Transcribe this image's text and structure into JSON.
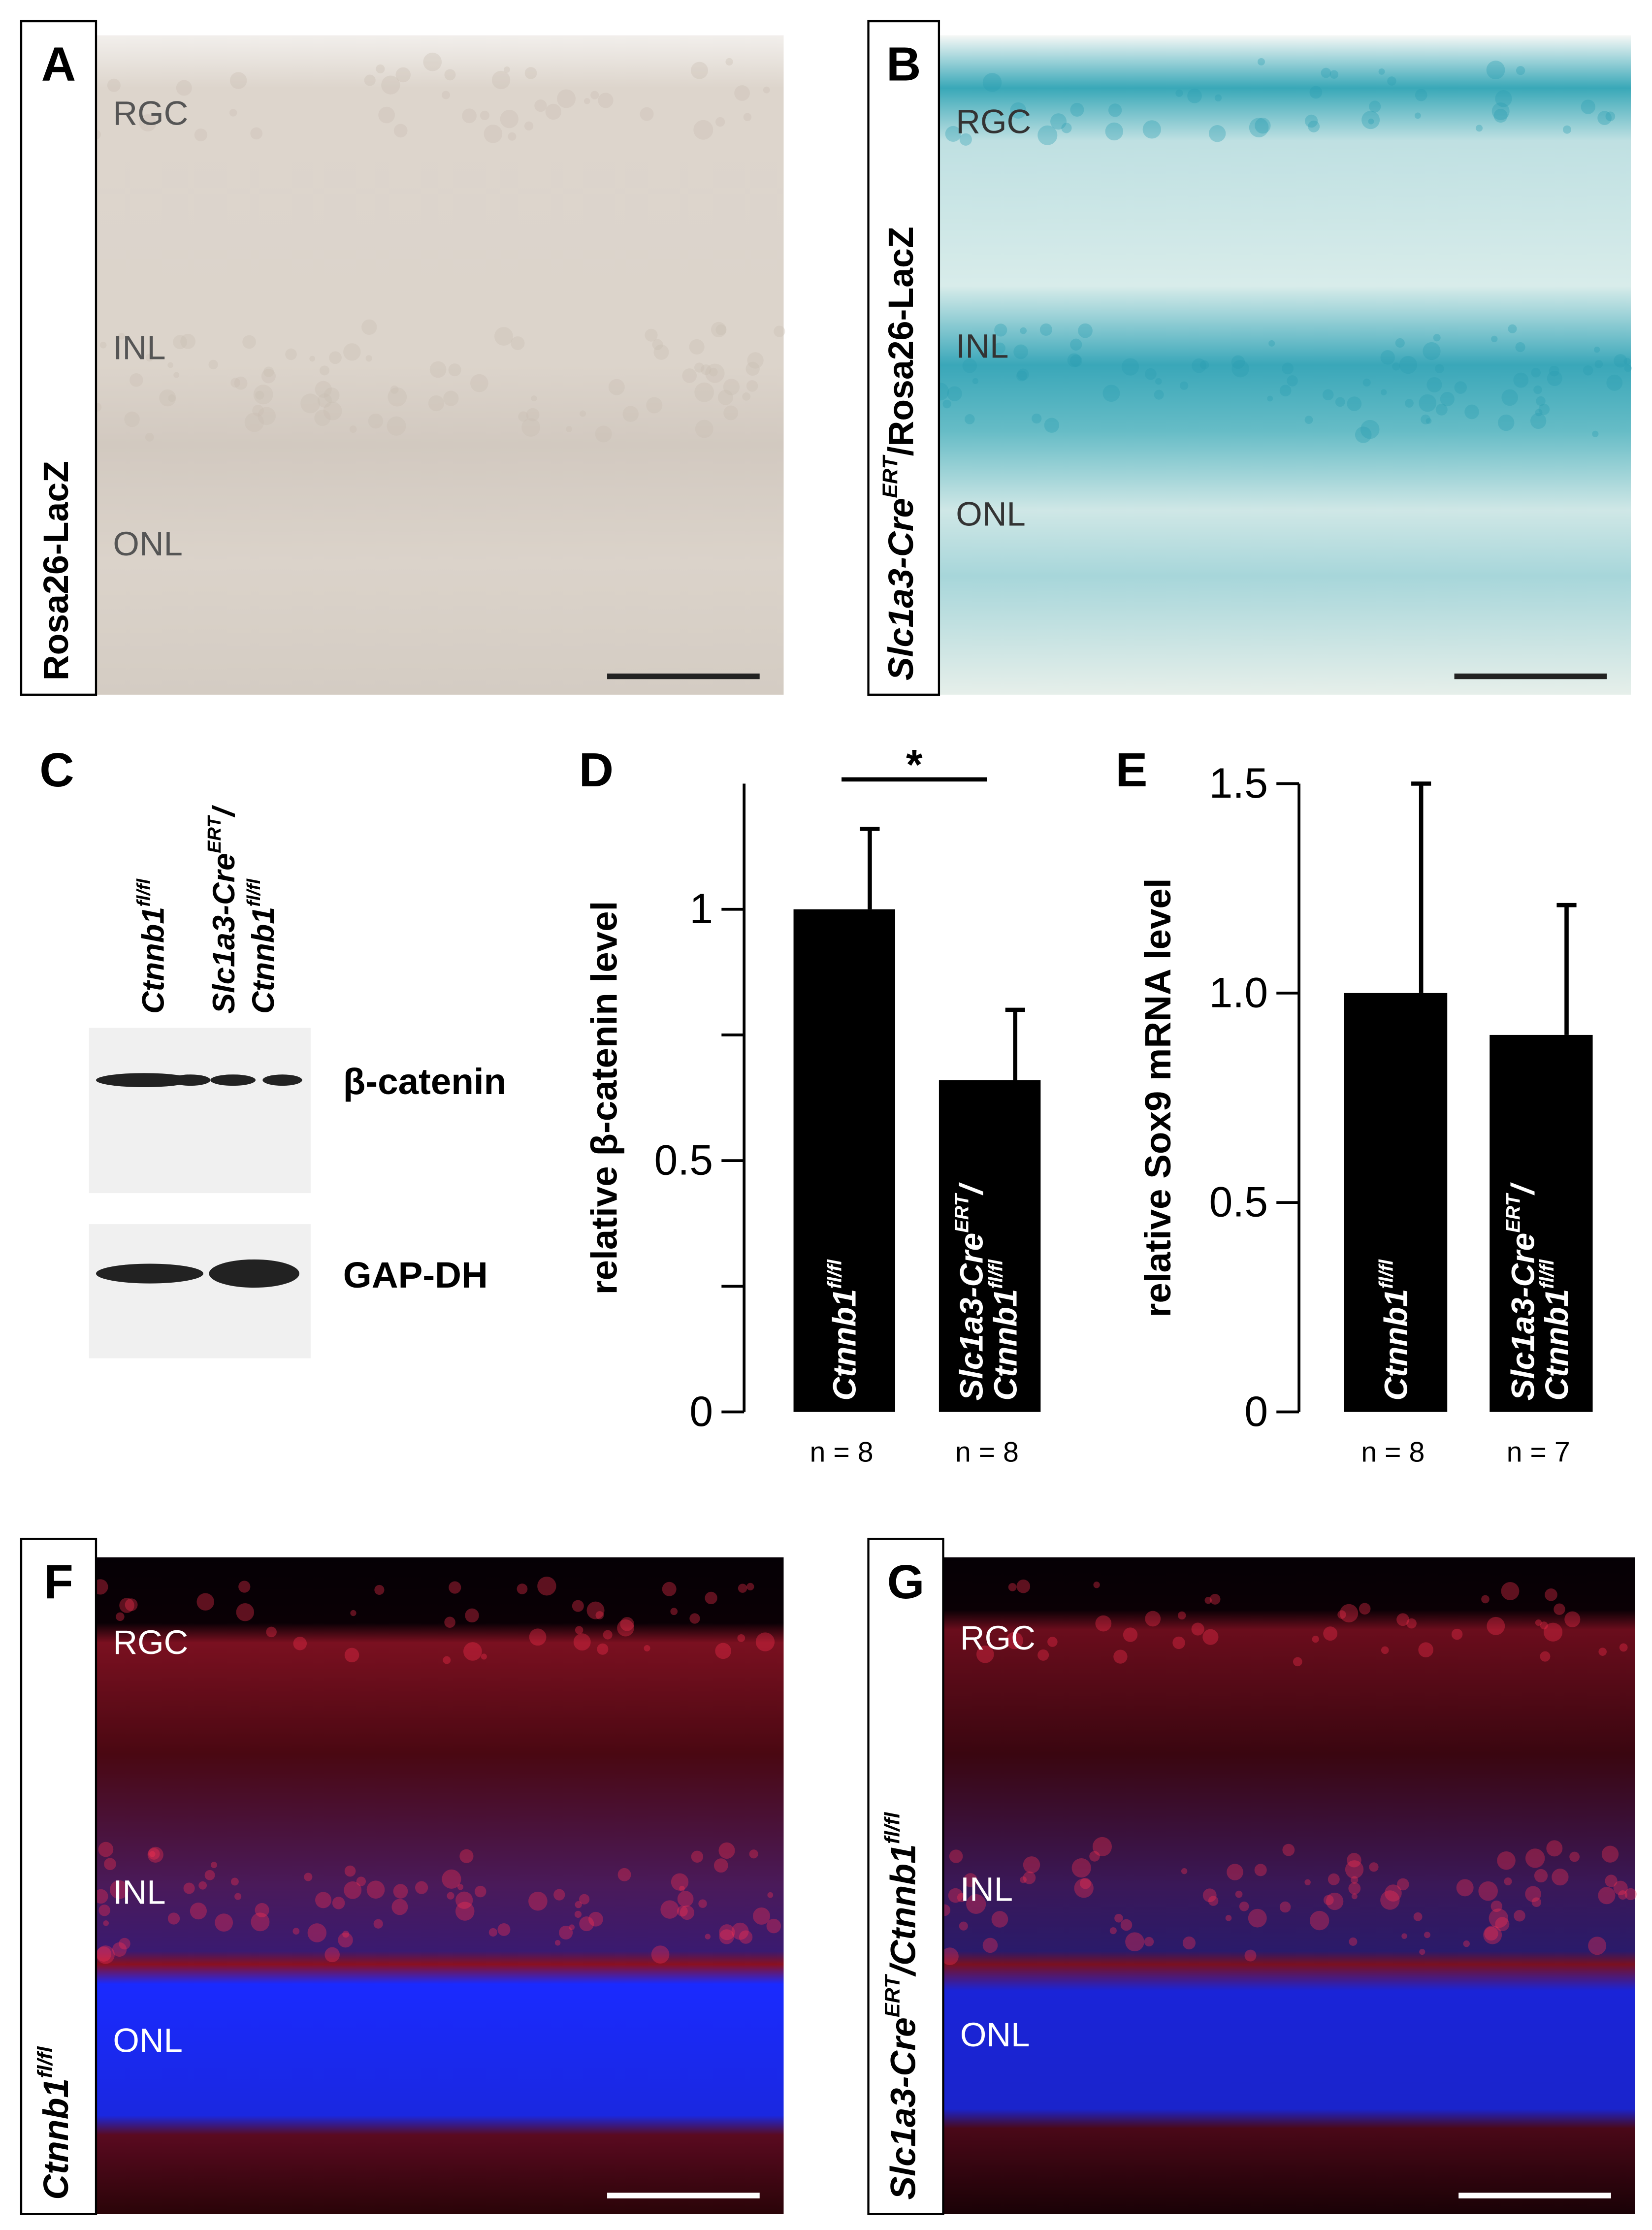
{
  "panels": [
    {
      "letter": "A",
      "side_label": [
        {
          "t": "Rosa26-LacZ"
        }
      ],
      "layers": [
        "RGC",
        "INL",
        "ONL"
      ]
    },
    {
      "letter": "B",
      "side_label": [
        {
          "t": "Slc1a3-Cre",
          "i": true
        },
        {
          "s": "ERT",
          "i": true
        },
        {
          "t": "/Rosa26-LacZ"
        }
      ],
      "layers": [
        "RGC",
        "INL",
        "ONL"
      ]
    },
    {
      "letter": "F",
      "side_label": [
        {
          "t": "Ctnnb1",
          "i": true
        },
        {
          "s": "fl/fl",
          "i": true
        }
      ],
      "layers": [
        "RGC",
        "INL",
        "ONL"
      ]
    },
    {
      "letter": "G",
      "side_label": [
        {
          "t": "Slc1a3-Cre",
          "i": true
        },
        {
          "s": "ERT",
          "i": true
        },
        {
          "t": "/Ctnnb1",
          "i": true
        },
        {
          "s": "fl/fl",
          "i": true
        }
      ],
      "layers": [
        "RGC",
        "INL",
        "ONL"
      ]
    }
  ],
  "blot": {
    "letter": "C",
    "lanes": [
      [
        [
          {
            "t": "Ctnnb1",
            "i": true
          },
          {
            "s": "fl/fl",
            "i": true
          }
        ]
      ],
      [
        [
          {
            "t": "Slc1a3-Cre",
            "i": true
          },
          {
            "s": "ERT",
            "i": true
          },
          {
            "t": "/",
            "i": true
          }
        ],
        [
          {
            "t": "Ctnnb1",
            "i": true
          },
          {
            "s": "fl/fl",
            "i": true
          }
        ]
      ]
    ],
    "bands": [
      "β-catenin",
      "GAP-DH"
    ]
  },
  "chart_data": [
    {
      "type": "bar",
      "letter": "D",
      "ylabel": "relative β-catenin level",
      "categories": [
        [
          [
            {
              "t": "Ctnnb1",
              "i": true
            },
            {
              "s": "fl/fl",
              "i": true
            }
          ]
        ],
        [
          [
            {
              "t": "Slc1a3-Cre",
              "i": true
            },
            {
              "s": "ERT",
              "i": true
            },
            {
              "t": "/",
              "i": true
            }
          ],
          [
            {
              "t": "Ctnnb1",
              "i": true
            },
            {
              "s": "fl/fl",
              "i": true
            }
          ]
        ]
      ],
      "values": [
        1.0,
        0.66
      ],
      "errors": [
        0.16,
        0.14
      ],
      "n_labels": [
        "n = 8",
        "n = 8"
      ],
      "color": "#000000",
      "significance": "*",
      "ylim": [
        0,
        1.25
      ],
      "yticks": [
        0,
        0.5,
        1
      ],
      "minor_ticks": [
        0.25,
        0.75
      ]
    },
    {
      "type": "bar",
      "letter": "E",
      "ylabel": "relative Sox9 mRNA level",
      "categories": [
        [
          [
            {
              "t": "Ctnnb1",
              "i": true
            },
            {
              "s": "fl/fl",
              "i": true
            }
          ]
        ],
        [
          [
            {
              "t": "Slc1a3-Cre",
              "i": true
            },
            {
              "s": "ERT",
              "i": true
            },
            {
              "t": "/",
              "i": true
            }
          ],
          [
            {
              "t": "Ctnnb1",
              "i": true
            },
            {
              "s": "fl/fl",
              "i": true
            }
          ]
        ]
      ],
      "values": [
        1.0,
        0.9
      ],
      "errors": [
        0.5,
        0.31
      ],
      "n_labels": [
        "n = 8",
        "n = 7"
      ],
      "color": "#000000",
      "ylim": [
        0,
        1.5
      ],
      "yticks": [
        0,
        0.5,
        {
          "value": 1,
          "label": "1.0"
        },
        1.5
      ],
      "minor_ticks": []
    }
  ]
}
